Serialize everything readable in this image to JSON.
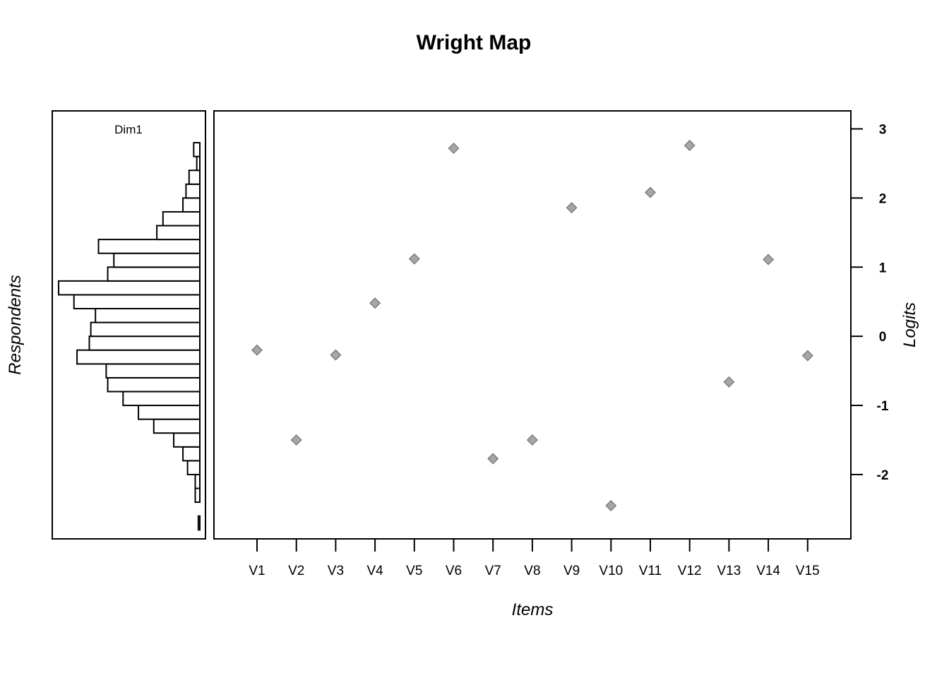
{
  "chart_data": {
    "type": "scatter",
    "title": "Wright Map",
    "ylabel": "Logits",
    "xlabel": "Items",
    "person_axis_label": "Respondents",
    "dimension_label": "Dim1",
    "ylim": [
      -2.92,
      3.25
    ],
    "yticks": [
      "-2",
      "-1",
      "0",
      "1",
      "2",
      "3"
    ],
    "categories": [
      "V1",
      "V2",
      "V3",
      "V4",
      "V5",
      "V6",
      "V7",
      "V8",
      "V9",
      "V10",
      "V11",
      "V12",
      "V13",
      "V14",
      "V15"
    ],
    "item_difficulties": [
      -0.2,
      -1.5,
      -0.27,
      0.48,
      1.12,
      2.72,
      -1.77,
      -1.5,
      1.86,
      -2.45,
      2.08,
      2.76,
      -0.66,
      1.11,
      -0.28
    ],
    "marker_color": "#a6a6a6",
    "marker_edge_color": "#808080",
    "person_histogram": {
      "bin_edges": [
        -2.8,
        -2.6,
        -2.4,
        -2.2,
        -2.0,
        -1.8,
        -1.6,
        -1.4,
        -1.2,
        -1.0,
        -0.8,
        -0.6,
        -0.4,
        -0.2,
        0.0,
        0.2,
        0.4,
        0.6,
        0.8,
        1.0,
        1.2,
        1.4,
        1.6,
        1.8,
        2.0,
        2.2,
        2.4,
        2.6
      ],
      "counts": [
        1,
        0,
        3,
        3,
        8,
        11,
        17,
        30,
        40,
        50,
        60,
        61,
        80,
        72,
        71,
        68,
        82,
        92,
        60,
        56,
        66,
        28,
        24,
        11,
        9,
        7,
        2,
        4
      ]
    }
  }
}
